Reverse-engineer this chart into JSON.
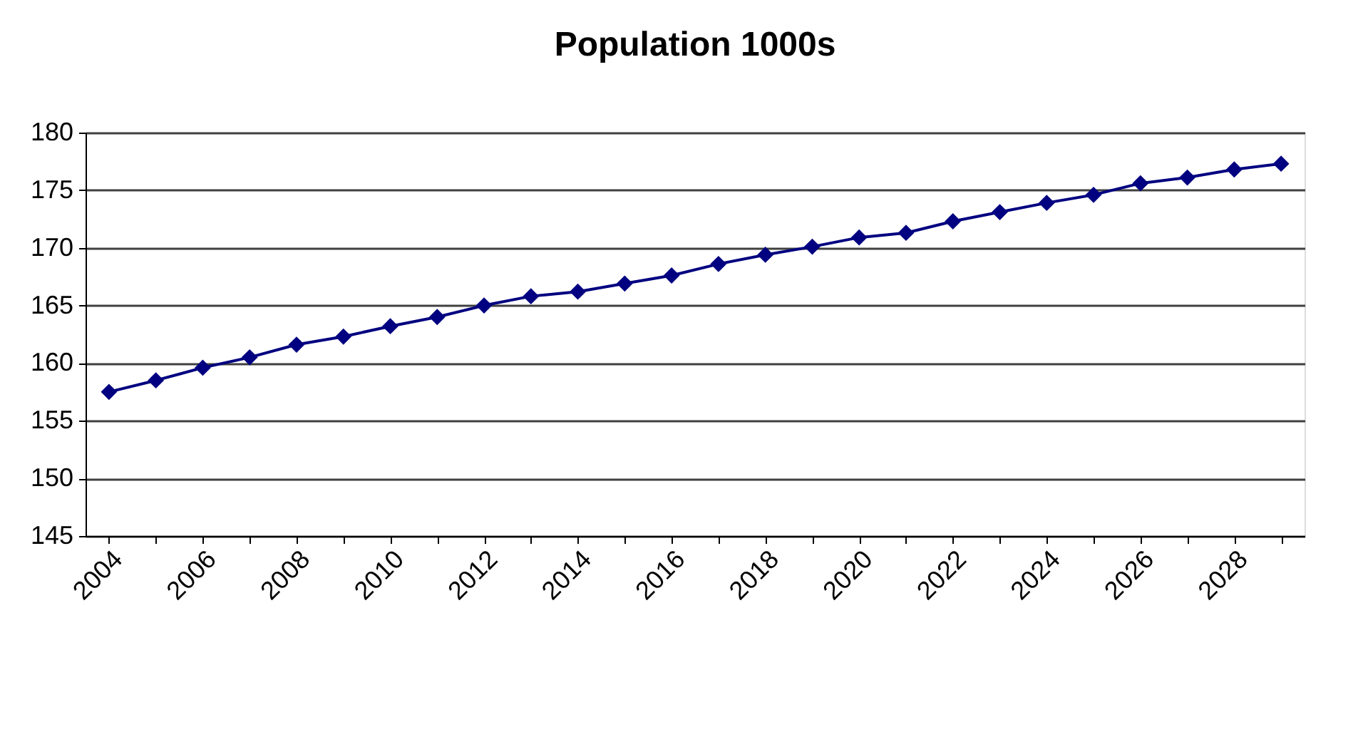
{
  "chart_data": {
    "type": "line",
    "title": "Population 1000s",
    "categories": [
      "2004",
      null,
      "2006",
      null,
      "2008",
      null,
      "2010",
      null,
      "2012",
      null,
      "2014",
      null,
      "2016",
      null,
      "2018",
      null,
      "2020",
      null,
      "2022",
      null,
      "2024",
      null,
      "2026",
      null,
      "2028",
      null
    ],
    "series": [
      {
        "color": "#000080",
        "values": [
          157.5,
          158.5,
          159.6,
          160.5,
          161.6,
          162.3,
          163.2,
          164.0,
          165.0,
          165.8,
          166.2,
          166.9,
          167.6,
          168.6,
          169.4,
          170.1,
          170.9,
          171.3,
          172.3,
          173.1,
          173.9,
          174.6,
          175.6,
          176.1,
          176.8,
          177.3
        ]
      }
    ],
    "ylim": [
      145,
      180
    ],
    "yticks": [
      145,
      150,
      155,
      160,
      165,
      170,
      175,
      180
    ],
    "grid": "y",
    "marker": "diamond",
    "line_style": "solid"
  }
}
